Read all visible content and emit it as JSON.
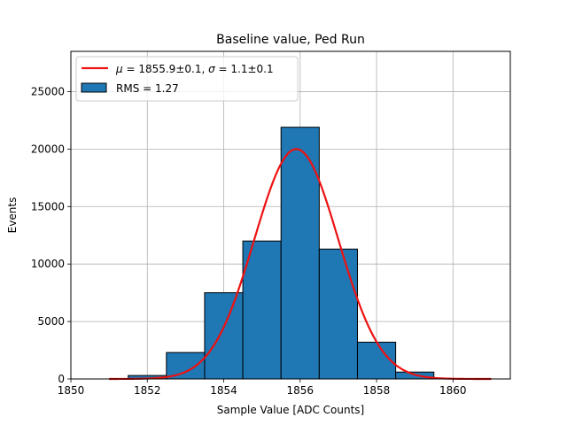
{
  "chart_data": {
    "type": "bar",
    "title": "Baseline value, Ped Run",
    "xlabel": "Sample Value [ADC Counts]",
    "ylabel": "Events",
    "xlim": [
      1850,
      1861.5
    ],
    "ylim": [
      0,
      28500
    ],
    "xticks": [
      1850,
      1852,
      1854,
      1856,
      1858,
      1860
    ],
    "yticks": [
      0,
      5000,
      10000,
      15000,
      20000,
      25000
    ],
    "grid": true,
    "legend_position": "top-left",
    "histogram": {
      "name": "RMS = 1.27",
      "color": "#1f77b4",
      "edge_color": "#000000",
      "bins": [
        {
          "x0": 1851.5,
          "x1": 1852.5,
          "count": 300
        },
        {
          "x0": 1852.5,
          "x1": 1853.5,
          "count": 2300
        },
        {
          "x0": 1853.5,
          "x1": 1854.5,
          "count": 7500
        },
        {
          "x0": 1854.5,
          "x1": 1855.5,
          "count": 12000
        },
        {
          "x0": 1855.5,
          "x1": 1856.5,
          "count": 21900
        },
        {
          "x0": 1856.5,
          "x1": 1857.5,
          "count": 11300
        },
        {
          "x0": 1857.5,
          "x1": 1858.5,
          "count": 3200
        },
        {
          "x0": 1858.5,
          "x1": 1859.5,
          "count": 600
        }
      ]
    },
    "fit": {
      "name": "μ = 1855.9±0.1, σ = 1.1±0.1",
      "color": "#ee1111",
      "mu": 1855.9,
      "sigma": 1.1,
      "amplitude": 20000,
      "x_range": [
        1851,
        1861
      ]
    }
  },
  "legend": {
    "fit_mu_sym": "μ",
    "fit_mu_rest": " = 1855.9±0.1, ",
    "fit_sigma_sym": "σ",
    "fit_sigma_rest": " = 1.1±0.1",
    "hist_label": "RMS = 1.27"
  }
}
